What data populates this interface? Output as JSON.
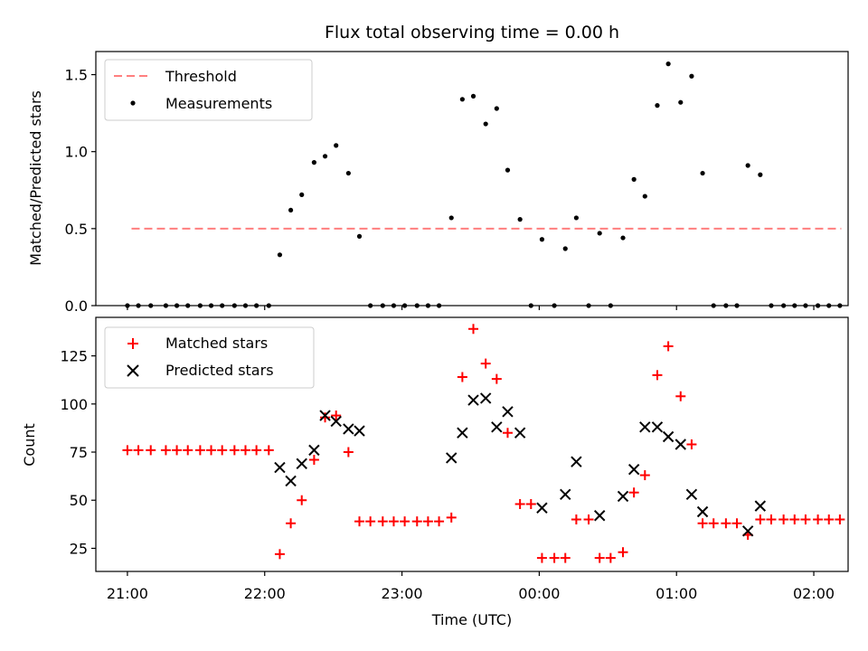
{
  "chart_data": {
    "title": "Flux total observing time = 0.00 h",
    "xlabel": "Time (UTC)",
    "x_tick_labels": [
      "21:00",
      "22:00",
      "23:00",
      "00:00",
      "01:00",
      "02:00"
    ],
    "x_tick_hours": [
      0,
      1,
      2,
      3,
      4,
      5
    ],
    "x_range_hours_since_21": [
      -0.23,
      5.25
    ],
    "panels": [
      {
        "type": "scatter",
        "ylabel": "Matched/Predicted stars",
        "ylim": [
          0,
          1.65
        ],
        "yticks": [
          "0.0",
          "0.5",
          "1.0",
          "1.5"
        ],
        "ytick_values": [
          0,
          0.5,
          1.0,
          1.5
        ],
        "threshold": {
          "name": "Threshold",
          "value": 0.5,
          "x_range": [
            0.03,
            5.2
          ],
          "color": "#ff7f7f"
        },
        "legend": [
          "Threshold",
          "Measurements"
        ],
        "legend_position": "upper-left",
        "series": [
          {
            "name": "Measurements",
            "color": "#000000",
            "points": [
              [
                0.0,
                0.0
              ],
              [
                0.08,
                0.0
              ],
              [
                0.17,
                0.0
              ],
              [
                0.28,
                0.0
              ],
              [
                0.36,
                0.0
              ],
              [
                0.44,
                0.0
              ],
              [
                0.53,
                0.0
              ],
              [
                0.61,
                0.0
              ],
              [
                0.69,
                0.0
              ],
              [
                0.78,
                0.0
              ],
              [
                0.86,
                0.0
              ],
              [
                0.94,
                0.0
              ],
              [
                1.03,
                0.0
              ],
              [
                1.11,
                0.33
              ],
              [
                1.19,
                0.62
              ],
              [
                1.27,
                0.72
              ],
              [
                1.36,
                0.93
              ],
              [
                1.44,
                0.97
              ],
              [
                1.52,
                1.04
              ],
              [
                1.61,
                0.86
              ],
              [
                1.69,
                0.45
              ],
              [
                1.77,
                0.0
              ],
              [
                1.86,
                0.0
              ],
              [
                1.94,
                0.0
              ],
              [
                2.02,
                0.0
              ],
              [
                2.11,
                0.0
              ],
              [
                2.19,
                0.0
              ],
              [
                2.27,
                0.0
              ],
              [
                2.36,
                0.57
              ],
              [
                2.44,
                1.34
              ],
              [
                2.52,
                1.36
              ],
              [
                2.61,
                1.18
              ],
              [
                2.69,
                1.28
              ],
              [
                2.77,
                0.88
              ],
              [
                2.86,
                0.56
              ],
              [
                2.94,
                0.0
              ],
              [
                3.02,
                0.43
              ],
              [
                3.11,
                0.0
              ],
              [
                3.19,
                0.37
              ],
              [
                3.27,
                0.57
              ],
              [
                3.36,
                0.0
              ],
              [
                3.44,
                0.47
              ],
              [
                3.52,
                0.0
              ],
              [
                3.61,
                0.44
              ],
              [
                3.69,
                0.82
              ],
              [
                3.77,
                0.71
              ],
              [
                3.86,
                1.3
              ],
              [
                3.94,
                1.57
              ],
              [
                4.03,
                1.32
              ],
              [
                4.11,
                1.49
              ],
              [
                4.19,
                0.86
              ],
              [
                4.27,
                0.0
              ],
              [
                4.36,
                0.0
              ],
              [
                4.44,
                0.0
              ],
              [
                4.52,
                0.91
              ],
              [
                4.61,
                0.85
              ],
              [
                4.69,
                0.0
              ],
              [
                4.78,
                0.0
              ],
              [
                4.86,
                0.0
              ],
              [
                4.94,
                0.0
              ],
              [
                5.03,
                0.0
              ],
              [
                5.11,
                0.0
              ],
              [
                5.19,
                0.0
              ]
            ]
          }
        ]
      },
      {
        "type": "scatter",
        "ylabel": "Count",
        "ylim": [
          13,
          145
        ],
        "yticks": [
          "25",
          "50",
          "75",
          "100",
          "125"
        ],
        "ytick_values": [
          25,
          50,
          75,
          100,
          125
        ],
        "legend": [
          "Matched stars",
          "Predicted stars"
        ],
        "legend_position": "upper-left",
        "series": [
          {
            "name": "Matched stars",
            "marker": "plus",
            "color": "#ff0000",
            "points": [
              [
                0.0,
                76
              ],
              [
                0.08,
                76
              ],
              [
                0.17,
                76
              ],
              [
                0.28,
                76
              ],
              [
                0.36,
                76
              ],
              [
                0.44,
                76
              ],
              [
                0.53,
                76
              ],
              [
                0.61,
                76
              ],
              [
                0.69,
                76
              ],
              [
                0.78,
                76
              ],
              [
                0.86,
                76
              ],
              [
                0.94,
                76
              ],
              [
                1.03,
                76
              ],
              [
                1.11,
                22
              ],
              [
                1.19,
                38
              ],
              [
                1.27,
                50
              ],
              [
                1.36,
                71
              ],
              [
                1.44,
                93
              ],
              [
                1.52,
                94
              ],
              [
                1.61,
                75
              ],
              [
                1.69,
                39
              ],
              [
                1.77,
                39
              ],
              [
                1.86,
                39
              ],
              [
                1.94,
                39
              ],
              [
                2.02,
                39
              ],
              [
                2.11,
                39
              ],
              [
                2.19,
                39
              ],
              [
                2.27,
                39
              ],
              [
                2.36,
                41
              ],
              [
                2.44,
                114
              ],
              [
                2.52,
                139
              ],
              [
                2.61,
                121
              ],
              [
                2.69,
                113
              ],
              [
                2.77,
                85
              ],
              [
                2.86,
                48
              ],
              [
                2.94,
                48
              ],
              [
                3.02,
                20
              ],
              [
                3.11,
                20
              ],
              [
                3.19,
                20
              ],
              [
                3.27,
                40
              ],
              [
                3.36,
                40
              ],
              [
                3.44,
                20
              ],
              [
                3.52,
                20
              ],
              [
                3.61,
                23
              ],
              [
                3.69,
                54
              ],
              [
                3.77,
                63
              ],
              [
                3.86,
                115
              ],
              [
                3.94,
                130
              ],
              [
                4.03,
                104
              ],
              [
                4.11,
                79
              ],
              [
                4.19,
                38
              ],
              [
                4.27,
                38
              ],
              [
                4.36,
                38
              ],
              [
                4.44,
                38
              ],
              [
                4.52,
                32
              ],
              [
                4.61,
                40
              ],
              [
                4.69,
                40
              ],
              [
                4.78,
                40
              ],
              [
                4.86,
                40
              ],
              [
                4.94,
                40
              ],
              [
                5.03,
                40
              ],
              [
                5.11,
                40
              ],
              [
                5.19,
                40
              ]
            ]
          },
          {
            "name": "Predicted stars",
            "marker": "cross",
            "color": "#000000",
            "points": [
              [
                1.11,
                67
              ],
              [
                1.19,
                60
              ],
              [
                1.27,
                69
              ],
              [
                1.36,
                76
              ],
              [
                1.44,
                94
              ],
              [
                1.52,
                91
              ],
              [
                1.61,
                87
              ],
              [
                1.69,
                86
              ],
              [
                2.36,
                72
              ],
              [
                2.44,
                85
              ],
              [
                2.52,
                102
              ],
              [
                2.61,
                103
              ],
              [
                2.69,
                88
              ],
              [
                2.77,
                96
              ],
              [
                2.86,
                85
              ],
              [
                3.02,
                46
              ],
              [
                3.19,
                53
              ],
              [
                3.27,
                70
              ],
              [
                3.44,
                42
              ],
              [
                3.61,
                52
              ],
              [
                3.69,
                66
              ],
              [
                3.77,
                88
              ],
              [
                3.86,
                88
              ],
              [
                3.94,
                83
              ],
              [
                4.03,
                79
              ],
              [
                4.11,
                53
              ],
              [
                4.19,
                44
              ],
              [
                4.52,
                34
              ],
              [
                4.61,
                47
              ]
            ]
          }
        ]
      }
    ]
  }
}
